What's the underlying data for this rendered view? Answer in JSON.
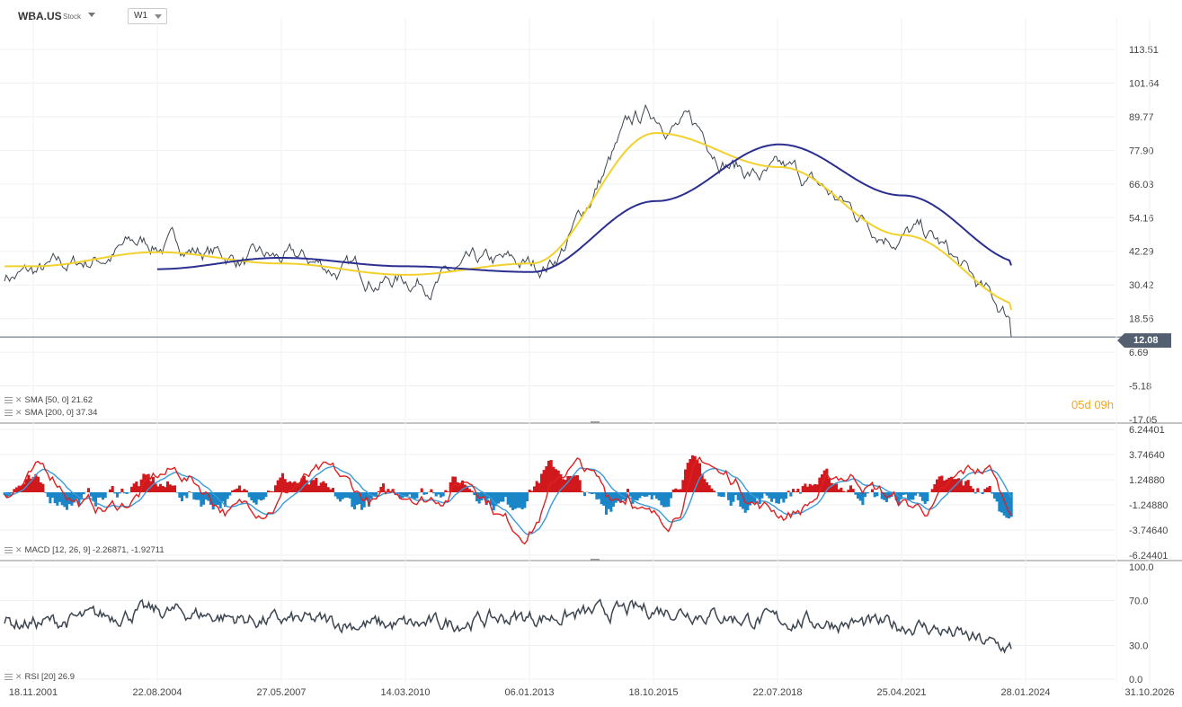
{
  "header": {
    "symbol": "WBA.US",
    "symbol_type": "Stock",
    "timeframe": "W1"
  },
  "current_price": "12.08",
  "countdown": {
    "days": "05",
    "d": "d",
    "hours": "09",
    "h": "h"
  },
  "indicators": {
    "sma50": "SMA [50, 0] 21.62",
    "sma200": "SMA [200, 0] 37.34",
    "macd": "MACD [12, 26, 9] -2.26871, -1.92711",
    "rsi": "RSI [20] 26.9"
  },
  "colors": {
    "price": "#3d4650",
    "sma50": "#f2d12c",
    "sma200": "#2b2f8f",
    "macd_line": "#e02020",
    "signal_line": "#3a9ad9",
    "hist_pos": "#d0191d",
    "hist_neg": "#1a86c7",
    "rsi": "#3d4650",
    "price_badge": "#546070",
    "countdown": "#f5a623"
  },
  "chart_data": [
    {
      "type": "line",
      "panel": "price",
      "y_ticks": [
        "113.51",
        "101.64",
        "89.77",
        "77.90",
        "66.03",
        "54.16",
        "42.29",
        "30.42",
        "18.56",
        "6.69",
        "-5.18",
        "-17.05"
      ],
      "ylim": [
        -17.05,
        113.51
      ],
      "x_ticks": [
        "18.11.2001",
        "22.08.2004",
        "27.05.2007",
        "14.03.2010",
        "06.01.2013",
        "18.10.2015",
        "22.07.2018",
        "25.04.2021",
        "28.01.2024",
        "31.10.2026"
      ],
      "series": [
        {
          "name": "WBA.US",
          "x": [
            "18.11.2001",
            "22.08.2004",
            "27.05.2007",
            "14.03.2010",
            "06.01.2013",
            "18.10.2015",
            "22.07.2018",
            "25.04.2021",
            "28.01.2024"
          ],
          "values": [
            34,
            45,
            38,
            33,
            36,
            90,
            68,
            50,
            18
          ]
        },
        {
          "name": "SMA [50, 0]",
          "x": [
            "18.11.2001",
            "22.08.2004",
            "27.05.2007",
            "14.03.2010",
            "06.01.2013",
            "18.10.2015",
            "22.07.2018",
            "25.04.2021",
            "28.01.2024"
          ],
          "values": [
            37,
            42,
            38,
            34,
            38,
            84,
            72,
            48,
            23
          ]
        },
        {
          "name": "SMA [200, 0]",
          "x": [
            "18.11.2001",
            "22.08.2004",
            "27.05.2007",
            "14.03.2010",
            "06.01.2013",
            "18.10.2015",
            "22.07.2018",
            "25.04.2021",
            "28.01.2024"
          ],
          "values": [
            null,
            36,
            40,
            37,
            35,
            60,
            80,
            62,
            38
          ]
        }
      ]
    },
    {
      "type": "bar",
      "panel": "macd",
      "y_ticks": [
        "6.24401",
        "3.74640",
        "1.24880",
        "-1.24880",
        "-3.74640",
        "-6.24401"
      ],
      "ylim": [
        -6.24401,
        6.24401
      ],
      "series": [
        {
          "name": "MACD [12, 26, 9]",
          "last": -2.26871
        },
        {
          "name": "signal",
          "last": -1.92711
        }
      ]
    },
    {
      "type": "line",
      "panel": "rsi",
      "y_ticks": [
        "100.0",
        "70.0",
        "30.0",
        "0.0"
      ],
      "ylim": [
        0,
        100
      ],
      "series": [
        {
          "name": "RSI [20]",
          "x": [
            "18.11.2001",
            "22.08.2004",
            "27.05.2007",
            "14.03.2010",
            "06.01.2013",
            "18.10.2015",
            "22.07.2018",
            "25.04.2021",
            "28.01.2024"
          ],
          "values": [
            50,
            60,
            52,
            48,
            55,
            62,
            52,
            48,
            27
          ]
        }
      ]
    }
  ]
}
